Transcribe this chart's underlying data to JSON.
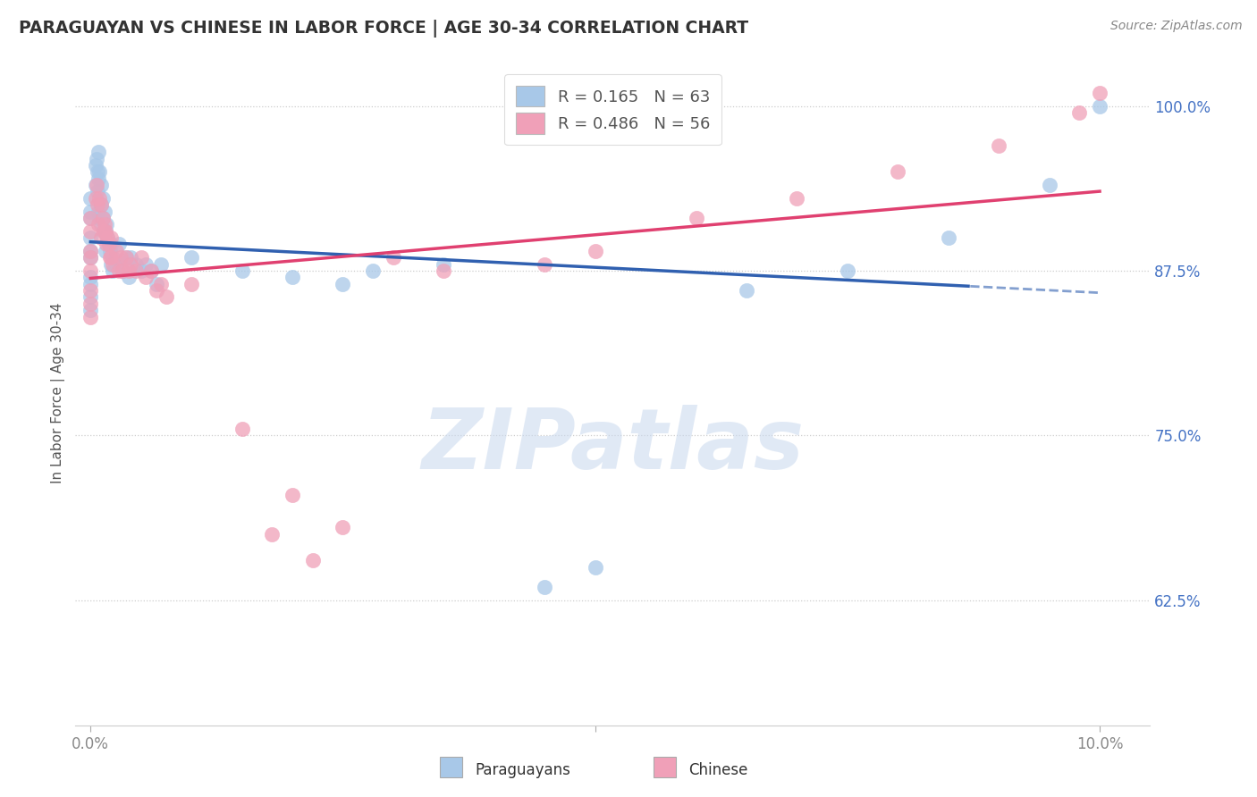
{
  "title": "PARAGUAYAN VS CHINESE IN LABOR FORCE | AGE 30-34 CORRELATION CHART",
  "source_text": "Source: ZipAtlas.com",
  "ylabel": "In Labor Force | Age 30-34",
  "legend_label1": "Paraguayans",
  "legend_label2": "Chinese",
  "legend_r1": "R = 0.165",
  "legend_n1": "N = 63",
  "legend_r2": "R = 0.486",
  "legend_n2": "N = 56",
  "xlim_min": -0.15,
  "xlim_max": 10.5,
  "ylim_min": 53.0,
  "ylim_max": 103.5,
  "ytick_positions": [
    62.5,
    75.0,
    87.5,
    100.0
  ],
  "ytick_labels": [
    "62.5%",
    "75.0%",
    "87.5%",
    "100.0%"
  ],
  "xtick_positions": [
    0.0,
    5.0,
    10.0
  ],
  "xtick_labels": [
    "0.0%",
    "",
    "10.0%"
  ],
  "color_blue": "#A8C8E8",
  "color_pink": "#F0A0B8",
  "color_blue_line": "#3060B0",
  "color_pink_line": "#E04070",
  "color_grid": "#CCCCCC",
  "color_title": "#333333",
  "color_source": "#888888",
  "color_ylabel": "#555555",
  "color_ytick": "#4472C4",
  "color_xtick": "#888888",
  "watermark_color": "#C8D8EE",
  "watermark_text": "ZIPatlas",
  "dashed_start_x": 8.7,
  "blue_x": [
    0.0,
    0.0,
    0.0,
    0.0,
    0.0,
    0.0,
    0.0,
    0.0,
    0.0,
    0.0,
    0.05,
    0.05,
    0.06,
    0.07,
    0.07,
    0.08,
    0.08,
    0.08,
    0.09,
    0.09,
    0.1,
    0.1,
    0.1,
    0.12,
    0.12,
    0.13,
    0.14,
    0.15,
    0.15,
    0.16,
    0.17,
    0.18,
    0.19,
    0.2,
    0.2,
    0.22,
    0.22,
    0.25,
    0.28,
    0.3,
    0.32,
    0.35,
    0.38,
    0.4,
    0.45,
    0.5,
    0.55,
    0.6,
    0.65,
    0.7,
    1.0,
    1.5,
    2.0,
    2.5,
    2.8,
    3.5,
    4.5,
    5.0,
    6.5,
    7.5,
    8.5,
    9.5,
    10.0
  ],
  "blue_y": [
    87.0,
    88.5,
    89.0,
    90.0,
    91.5,
    86.5,
    85.5,
    84.5,
    93.0,
    92.0,
    95.5,
    94.0,
    96.0,
    95.0,
    93.5,
    94.5,
    96.5,
    92.0,
    95.0,
    91.5,
    94.0,
    92.5,
    91.0,
    93.0,
    91.5,
    90.5,
    92.0,
    90.5,
    89.0,
    91.0,
    90.0,
    89.5,
    89.0,
    89.5,
    88.0,
    88.5,
    87.5,
    88.0,
    89.5,
    88.0,
    87.5,
    88.5,
    87.0,
    88.5,
    88.0,
    87.5,
    88.0,
    87.5,
    86.5,
    88.0,
    88.5,
    87.5,
    87.0,
    86.5,
    87.5,
    88.0,
    63.5,
    65.0,
    86.0,
    87.5,
    90.0,
    94.0,
    100.0
  ],
  "pink_x": [
    0.0,
    0.0,
    0.0,
    0.0,
    0.0,
    0.0,
    0.0,
    0.0,
    0.05,
    0.06,
    0.07,
    0.08,
    0.09,
    0.1,
    0.1,
    0.12,
    0.13,
    0.14,
    0.15,
    0.16,
    0.17,
    0.18,
    0.19,
    0.2,
    0.2,
    0.22,
    0.25,
    0.28,
    0.3,
    0.32,
    0.35,
    0.38,
    0.4,
    0.45,
    0.5,
    0.55,
    0.6,
    0.7,
    1.0,
    1.5,
    2.0,
    2.5,
    3.0,
    3.5,
    4.5,
    5.0,
    6.0,
    7.0,
    8.0,
    9.0,
    9.8,
    10.0,
    1.8,
    2.2,
    0.65,
    0.75
  ],
  "pink_y": [
    87.5,
    89.0,
    90.5,
    86.0,
    85.0,
    84.0,
    88.5,
    91.5,
    93.0,
    94.0,
    92.5,
    91.0,
    93.0,
    92.5,
    90.0,
    91.5,
    90.5,
    91.0,
    90.5,
    89.5,
    90.0,
    89.5,
    88.5,
    90.0,
    88.5,
    88.0,
    89.0,
    87.5,
    88.5,
    87.5,
    88.5,
    87.5,
    88.0,
    87.5,
    88.5,
    87.0,
    87.5,
    86.5,
    86.5,
    75.5,
    70.5,
    68.0,
    88.5,
    87.5,
    88.0,
    89.0,
    91.5,
    93.0,
    95.0,
    97.0,
    99.5,
    101.0,
    67.5,
    65.5,
    86.0,
    85.5
  ]
}
